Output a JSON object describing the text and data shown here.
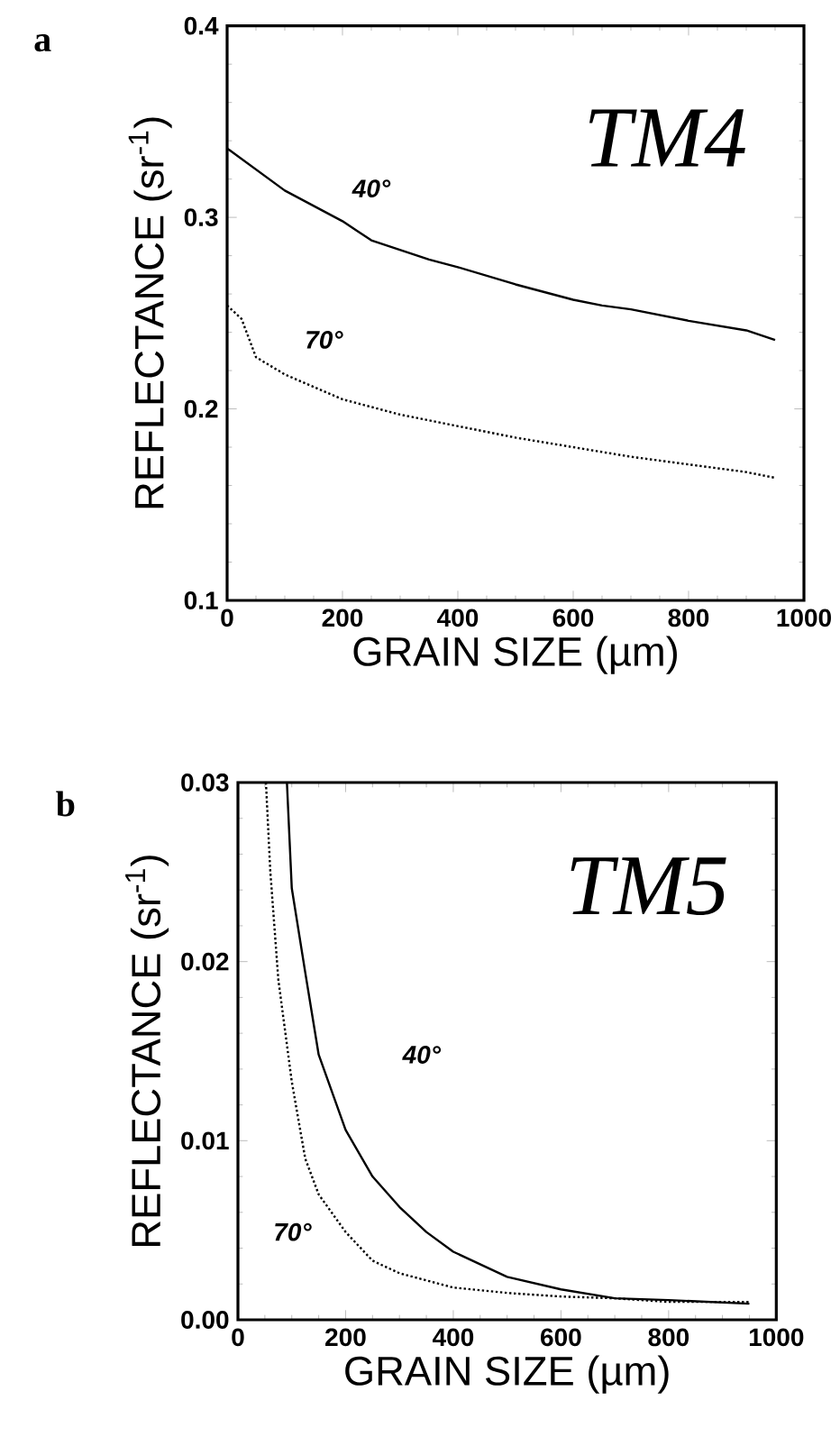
{
  "chart_data": [
    {
      "type": "line",
      "title": "TM4",
      "xlabel": "GRAIN SIZE (µm)",
      "ylabel": "REFLECTANCE (sr$^{-1}$)",
      "annotations": [
        "a"
      ],
      "xlim": [
        0,
        1000
      ],
      "ylim": [
        0.1,
        0.4
      ],
      "xticks": [
        0,
        200,
        400,
        600,
        800,
        1000
      ],
      "yticks": [
        0.1,
        0.2,
        0.3,
        0.4
      ],
      "grid": false,
      "legend": false,
      "series": [
        {
          "name": "40°",
          "color": "#000000",
          "line_style": "solid",
          "x": [
            0,
            100,
            200,
            250,
            300,
            350,
            400,
            500,
            600,
            650,
            700,
            800,
            900,
            950
          ],
          "values": [
            0.336,
            0.314,
            0.298,
            0.288,
            0.283,
            0.278,
            0.274,
            0.265,
            0.257,
            0.254,
            0.252,
            0.246,
            0.241,
            0.236
          ]
        },
        {
          "name": "70°",
          "color": "#000000",
          "line_style": "dotted",
          "x": [
            0,
            25,
            50,
            100,
            200,
            300,
            400,
            500,
            600,
            700,
            800,
            900,
            950
          ],
          "values": [
            0.254,
            0.247,
            0.227,
            0.218,
            0.205,
            0.197,
            0.191,
            0.185,
            0.18,
            0.175,
            0.171,
            0.167,
            0.164
          ]
        }
      ]
    },
    {
      "type": "line",
      "title": "TM5",
      "xlabel": "GRAIN SIZE (µm)",
      "ylabel": "REFLECTANCE (sr$^{-1}$)",
      "annotations": [
        "b"
      ],
      "xlim": [
        0,
        1000
      ],
      "ylim": [
        0,
        0.03
      ],
      "xticks": [
        0,
        200,
        400,
        600,
        800,
        1000
      ],
      "yticks": [
        {
          "value": 0,
          "label": "0.00"
        },
        {
          "value": 0.01,
          "label": "0.01"
        },
        {
          "value": 0.02,
          "label": "0.02"
        },
        {
          "value": 0.03,
          "label": "0.03"
        }
      ],
      "grid": false,
      "legend": false,
      "series": [
        {
          "name": "40°",
          "color": "#000000",
          "line_style": "solid",
          "x": [
            91,
            100,
            125,
            150,
            200,
            250,
            300,
            350,
            400,
            500,
            600,
            700,
            800,
            950
          ],
          "values": [
            0.03,
            0.0241,
            0.0194,
            0.0148,
            0.0106,
            0.008,
            0.0063,
            0.0049,
            0.0038,
            0.0024,
            0.0017,
            0.0012,
            0.0011,
            0.0009
          ]
        },
        {
          "name": "70°",
          "color": "#000000",
          "line_style": "dotted",
          "x": [
            52,
            60,
            75,
            100,
            125,
            150,
            200,
            250,
            300,
            400,
            500,
            600,
            700,
            800,
            950
          ],
          "values": [
            0.03,
            0.0251,
            0.019,
            0.0133,
            0.009,
            0.007,
            0.0049,
            0.0033,
            0.0026,
            0.0018,
            0.0015,
            0.0013,
            0.0012,
            0.001,
            0.001
          ]
        }
      ]
    }
  ]
}
